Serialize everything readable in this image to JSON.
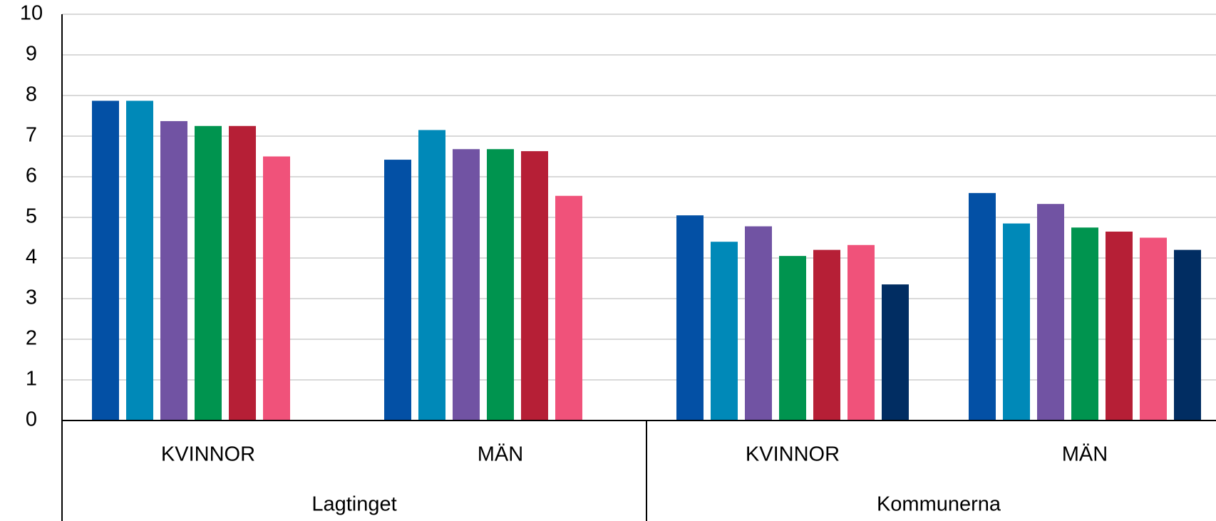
{
  "chart_data": {
    "type": "bar",
    "groups": [
      {
        "label": "Lagtinget",
        "categories": [
          "KVINNOR",
          "MÄN"
        ]
      },
      {
        "label": "Kommunerna",
        "categories": [
          "KVINNOR",
          "MÄN"
        ]
      }
    ],
    "series": [
      {
        "color": "#0350A5",
        "values": [
          7.87,
          6.42,
          5.05,
          5.6
        ]
      },
      {
        "color": "#0089B8",
        "values": [
          7.87,
          7.15,
          4.4,
          4.85
        ]
      },
      {
        "color": "#7153A3",
        "values": [
          7.37,
          6.68,
          4.78,
          5.33
        ]
      },
      {
        "color": "#00944F",
        "values": [
          7.25,
          6.68,
          4.05,
          4.75
        ]
      },
      {
        "color": "#B61F36",
        "values": [
          7.25,
          6.63,
          4.2,
          4.65
        ]
      },
      {
        "color": "#F0527A",
        "values": [
          6.5,
          5.53,
          4.32,
          4.5
        ]
      },
      {
        "color": "#012D62",
        "values": [
          null,
          null,
          3.35,
          4.2
        ]
      }
    ],
    "ylim": [
      0,
      10
    ],
    "yticks": [
      0,
      1,
      2,
      3,
      4,
      5,
      6,
      7,
      8,
      9,
      10
    ],
    "grid": true
  }
}
